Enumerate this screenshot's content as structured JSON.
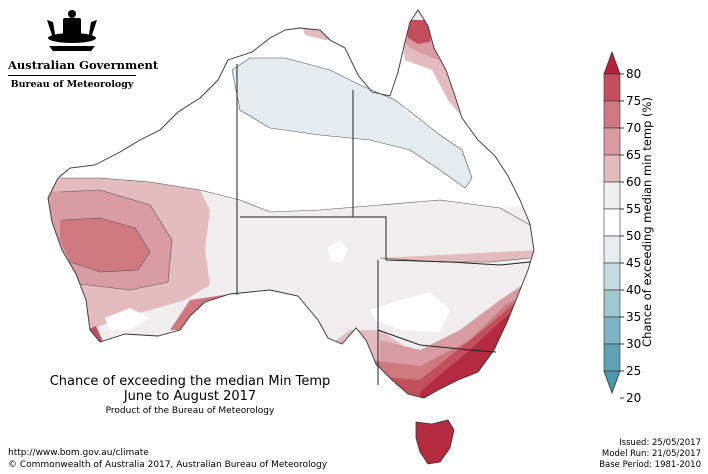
{
  "header": {
    "government": "Australian Government",
    "bureau": "Bureau of Meteorology",
    "crest_icon": "coat-of-arms-icon"
  },
  "map": {
    "title": "Chance of exceeding the median Min Temp",
    "period": "June to August 2017",
    "product_note": "Product of the Bureau of Meteorology",
    "colors": {
      "land_neutral": "#f0eeee",
      "pale_blue": "#e4ecef",
      "c55": "#ffffff",
      "c60": "#e4bbbf",
      "c65": "#d99ca2",
      "c70": "#d07880",
      "c75": "#c24f5b",
      "c80": "#b42b3f",
      "outline": "#333333"
    }
  },
  "legend": {
    "label": "Chance of exceeding median min temp (%)",
    "ticks": [
      "80",
      "75",
      "70",
      "65",
      "60",
      "55",
      "50",
      "45",
      "40",
      "35",
      "30",
      "25",
      "20"
    ],
    "colors_top_to_bottom": [
      "#b81f3b",
      "#c24f5b",
      "#d07880",
      "#d99ca2",
      "#e4bbbf",
      "#f0eeee",
      "#ffffff",
      "#e6eef1",
      "#c5dde1",
      "#a0c8cf",
      "#7fb5c2",
      "#5fa2b5",
      "#4b97ae"
    ]
  },
  "footer": {
    "url": "http://www.bom.gov.au/climate",
    "copyright": "© Commonwealth of Australia 2017, Australian Bureau of Meteorology",
    "issued": "Issued: 25/05/2017",
    "model_run": "Model Run: 21/05/2017",
    "base_period": "Base Period: 1981-2010"
  }
}
